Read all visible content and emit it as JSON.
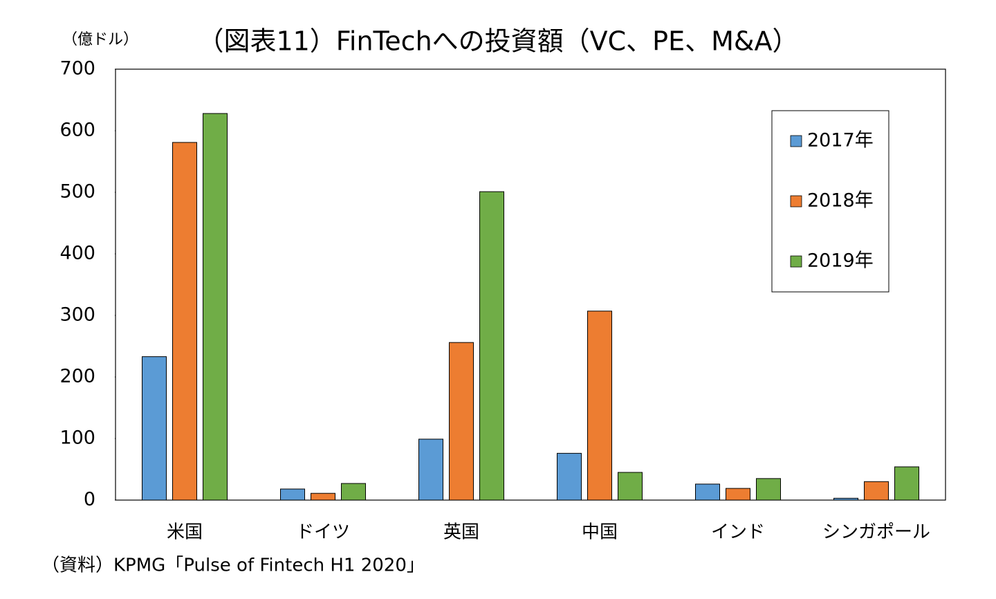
{
  "chart_data": {
    "type": "bar",
    "title": "（図表11）FinTechへの投資額（VC、PE、M&A）",
    "y_axis_label": "（億ドル）",
    "source": "（資料）KPMG「Pulse of Fintech H1 2020」",
    "categories": [
      "米国",
      "ドイツ",
      "英国",
      "中国",
      "インド",
      "シンガポール"
    ],
    "series": [
      {
        "name": "2017年",
        "color": "#5b9bd5",
        "values": [
          233,
          18,
          99,
          76,
          26,
          3
        ]
      },
      {
        "name": "2018年",
        "color": "#ed7d31",
        "values": [
          581,
          11,
          256,
          307,
          19,
          30
        ]
      },
      {
        "name": "2019年",
        "color": "#70ad47",
        "values": [
          628,
          27,
          501,
          45,
          35,
          54
        ]
      }
    ],
    "ylim": [
      0,
      700
    ],
    "yticks": [
      0,
      100,
      200,
      300,
      400,
      500,
      600,
      700
    ],
    "grid": false,
    "legend": "upper right"
  }
}
